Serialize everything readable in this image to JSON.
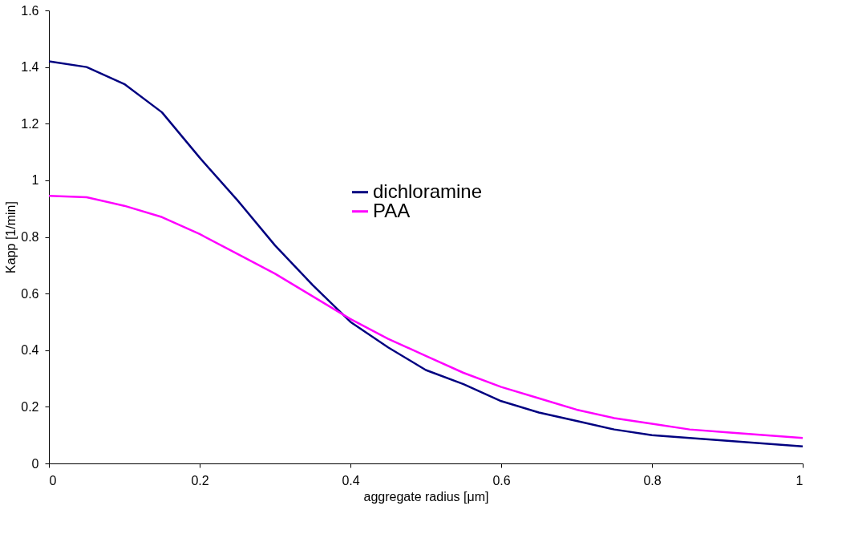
{
  "chart_data": {
    "type": "line",
    "xlabel": "aggregate radius [μm]",
    "ylabel": "Kapp [1/min]",
    "x": [
      0,
      0.05,
      0.1,
      0.15,
      0.2,
      0.25,
      0.3,
      0.35,
      0.4,
      0.45,
      0.5,
      0.55,
      0.6,
      0.65,
      0.7,
      0.75,
      0.8,
      0.85,
      0.9,
      0.95,
      1.0
    ],
    "series": [
      {
        "name": "dichloramine",
        "color": "#000080",
        "values": [
          1.42,
          1.4,
          1.34,
          1.24,
          1.08,
          0.93,
          0.77,
          0.63,
          0.5,
          0.41,
          0.33,
          0.28,
          0.22,
          0.18,
          0.15,
          0.12,
          0.1,
          0.09,
          0.08,
          0.07,
          0.06
        ]
      },
      {
        "name": "PAA",
        "color": "#ff00ff",
        "values": [
          0.945,
          0.94,
          0.91,
          0.87,
          0.81,
          0.74,
          0.67,
          0.59,
          0.51,
          0.44,
          0.38,
          0.32,
          0.27,
          0.23,
          0.19,
          0.16,
          0.14,
          0.12,
          0.11,
          0.1,
          0.09
        ]
      }
    ],
    "xlim": [
      0,
      1
    ],
    "xticks": [
      0,
      0.2,
      0.4,
      0.6,
      0.8,
      1
    ],
    "ylim": [
      0,
      1.6
    ],
    "yticks": [
      0,
      0.2,
      0.4,
      0.6,
      0.8,
      1,
      1.2,
      1.4,
      1.6
    ],
    "grid": false,
    "legend": "top",
    "marker": "none",
    "line_style": "solid"
  }
}
